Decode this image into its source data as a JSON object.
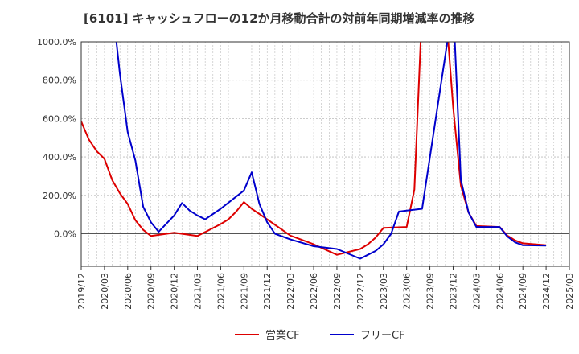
{
  "chart_data": {
    "type": "line",
    "title": "[6101]  キャッシュフローの12か月移動合計の対前年同期増減率の推移",
    "xlabel": "",
    "ylabel": "",
    "ylim": [
      -170,
      1000
    ],
    "y_ticks": [
      "1000.0%",
      "800.0%",
      "600.0%",
      "400.0%",
      "200.0%",
      "0.0%"
    ],
    "y_tick_values": [
      1000,
      800,
      600,
      400,
      200,
      0
    ],
    "x_ticks": [
      "2019/12",
      "2020/03",
      "2020/06",
      "2020/09",
      "2020/12",
      "2021/03",
      "2021/06",
      "2021/09",
      "2021/12",
      "2022/03",
      "2022/06",
      "2022/09",
      "2022/12",
      "2023/03",
      "2023/06",
      "2023/09",
      "2023/12",
      "2024/03",
      "2024/06",
      "2024/09",
      "2024/12",
      "2025/03"
    ],
    "grid": true,
    "legend_position": "bottom",
    "colors": {
      "eigyo": "#dd0000",
      "free": "#0000cc",
      "grid": "#bbbbbb",
      "axis": "#333333"
    },
    "series": [
      {
        "name": "営業CF",
        "color": "#dd0000",
        "points": [
          [
            "2019/12",
            585
          ],
          [
            "2020/01",
            490
          ],
          [
            "2020/02",
            430
          ],
          [
            "2020/03",
            390
          ],
          [
            "2020/04",
            280
          ],
          [
            "2020/05",
            210
          ],
          [
            "2020/06",
            155
          ],
          [
            "2020/07",
            70
          ],
          [
            "2020/08",
            20
          ],
          [
            "2020/09",
            -12
          ],
          [
            "2020/12",
            5
          ],
          [
            "2021/03",
            -12
          ],
          [
            "2021/06",
            50
          ],
          [
            "2021/07",
            75
          ],
          [
            "2021/08",
            115
          ],
          [
            "2021/09",
            165
          ],
          [
            "2021/10",
            130
          ],
          [
            "2021/12",
            75
          ],
          [
            "2022/03",
            -10
          ],
          [
            "2022/06",
            -55
          ],
          [
            "2022/09",
            -110
          ],
          [
            "2022/12",
            -80
          ],
          [
            "2023/01",
            -55
          ],
          [
            "2023/02",
            -20
          ],
          [
            "2023/03",
            30
          ],
          [
            "2023/06",
            35
          ],
          [
            "2023/07",
            230
          ],
          [
            "2023/08",
            1180
          ],
          [
            "2023/11",
            1200
          ],
          [
            "2023/12",
            660
          ],
          [
            "2024/01",
            250
          ],
          [
            "2024/02",
            110
          ],
          [
            "2024/03",
            40
          ],
          [
            "2024/06",
            35
          ],
          [
            "2024/07",
            -10
          ],
          [
            "2024/08",
            -35
          ],
          [
            "2024/09",
            -50
          ],
          [
            "2024/12",
            -60
          ]
        ]
      },
      {
        "name": "フリーCF",
        "color": "#0000cc",
        "points": [
          [
            "2020/04",
            1200
          ],
          [
            "2020/05",
            830
          ],
          [
            "2020/06",
            530
          ],
          [
            "2020/07",
            380
          ],
          [
            "2020/08",
            140
          ],
          [
            "2020/09",
            60
          ],
          [
            "2020/10",
            10
          ],
          [
            "2020/12",
            95
          ],
          [
            "2021/01",
            160
          ],
          [
            "2021/02",
            120
          ],
          [
            "2021/03",
            95
          ],
          [
            "2021/04",
            75
          ],
          [
            "2021/06",
            130
          ],
          [
            "2021/09",
            225
          ],
          [
            "2021/10",
            320
          ],
          [
            "2021/11",
            155
          ],
          [
            "2021/12",
            60
          ],
          [
            "2022/01",
            0
          ],
          [
            "2022/03",
            -30
          ],
          [
            "2022/06",
            -65
          ],
          [
            "2022/09",
            -80
          ],
          [
            "2022/12",
            -130
          ],
          [
            "2023/01",
            -110
          ],
          [
            "2023/02",
            -90
          ],
          [
            "2023/03",
            -55
          ],
          [
            "2023/04",
            0
          ],
          [
            "2023/05",
            115
          ],
          [
            "2023/06",
            120
          ],
          [
            "2023/08",
            130
          ],
          [
            "2023/12",
            1200
          ],
          [
            "2024/01",
            280
          ],
          [
            "2024/02",
            110
          ],
          [
            "2024/03",
            35
          ],
          [
            "2024/06",
            35
          ],
          [
            "2024/07",
            -15
          ],
          [
            "2024/08",
            -45
          ],
          [
            "2024/09",
            -60
          ],
          [
            "2024/12",
            -62
          ]
        ]
      }
    ]
  }
}
